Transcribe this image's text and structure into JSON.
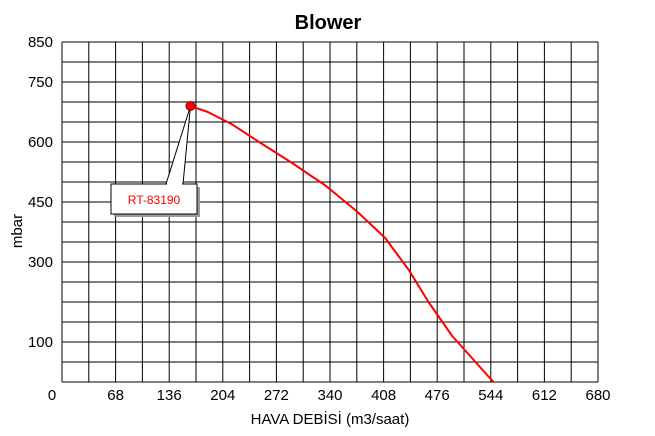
{
  "chart_data": {
    "type": "line",
    "title": "Blower",
    "xlabel": "HAVA DEBİSİ (m3/saat)",
    "ylabel": "mbar",
    "xlim": [
      0,
      680
    ],
    "ylim": [
      0,
      850
    ],
    "x_ticks": [
      0,
      68,
      136,
      204,
      272,
      340,
      408,
      476,
      544,
      612,
      680
    ],
    "y_ticks": [
      100,
      300,
      450,
      600,
      750,
      850
    ],
    "x_grid_step": 34,
    "y_grid_step": 50,
    "grid": true,
    "series": [
      {
        "name": "RT-83190",
        "color": "#ff0000",
        "x": [
          163,
          185,
          215,
          250,
          290,
          335,
          375,
          410,
          440,
          465,
          495,
          520,
          545,
          565
        ],
        "y": [
          690,
          675,
          645,
          600,
          550,
          490,
          425,
          360,
          280,
          200,
          115,
          60,
          5,
          -30
        ]
      }
    ],
    "marker": {
      "x": 163,
      "y": 690,
      "color": "#ff0000"
    },
    "callout": {
      "text": "RT-83190",
      "color": "#ff0000"
    }
  }
}
